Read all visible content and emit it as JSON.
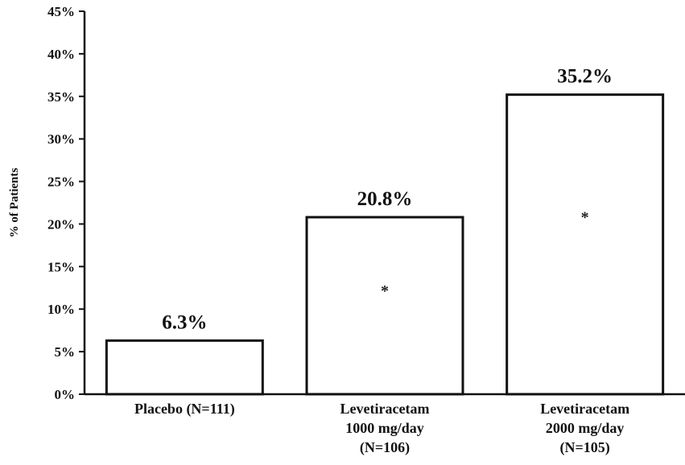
{
  "chart_data": {
    "type": "bar",
    "categories": [
      [
        "Placebo (N=111)"
      ],
      [
        "Levetiracetam",
        "1000 mg/day",
        "(N=106)"
      ],
      [
        "Levetiracetam",
        "2000 mg/day",
        "(N=105)"
      ]
    ],
    "values": [
      6.3,
      20.8,
      35.2
    ],
    "data_labels": [
      "6.3%",
      "20.8%",
      "35.2%"
    ],
    "significance_markers": [
      "",
      "*",
      "*"
    ],
    "ylabel": "% of Patients",
    "ylim": [
      0,
      45
    ],
    "yticks": [
      0,
      5,
      10,
      15,
      20,
      25,
      30,
      35,
      40,
      45
    ],
    "ytick_labels": [
      "0%",
      "5%",
      "10%",
      "15%",
      "20%",
      "25%",
      "30%",
      "35%",
      "40%",
      "45%"
    ],
    "grid": false,
    "bar_fill": "#ffffff",
    "bar_stroke": "#111111"
  }
}
